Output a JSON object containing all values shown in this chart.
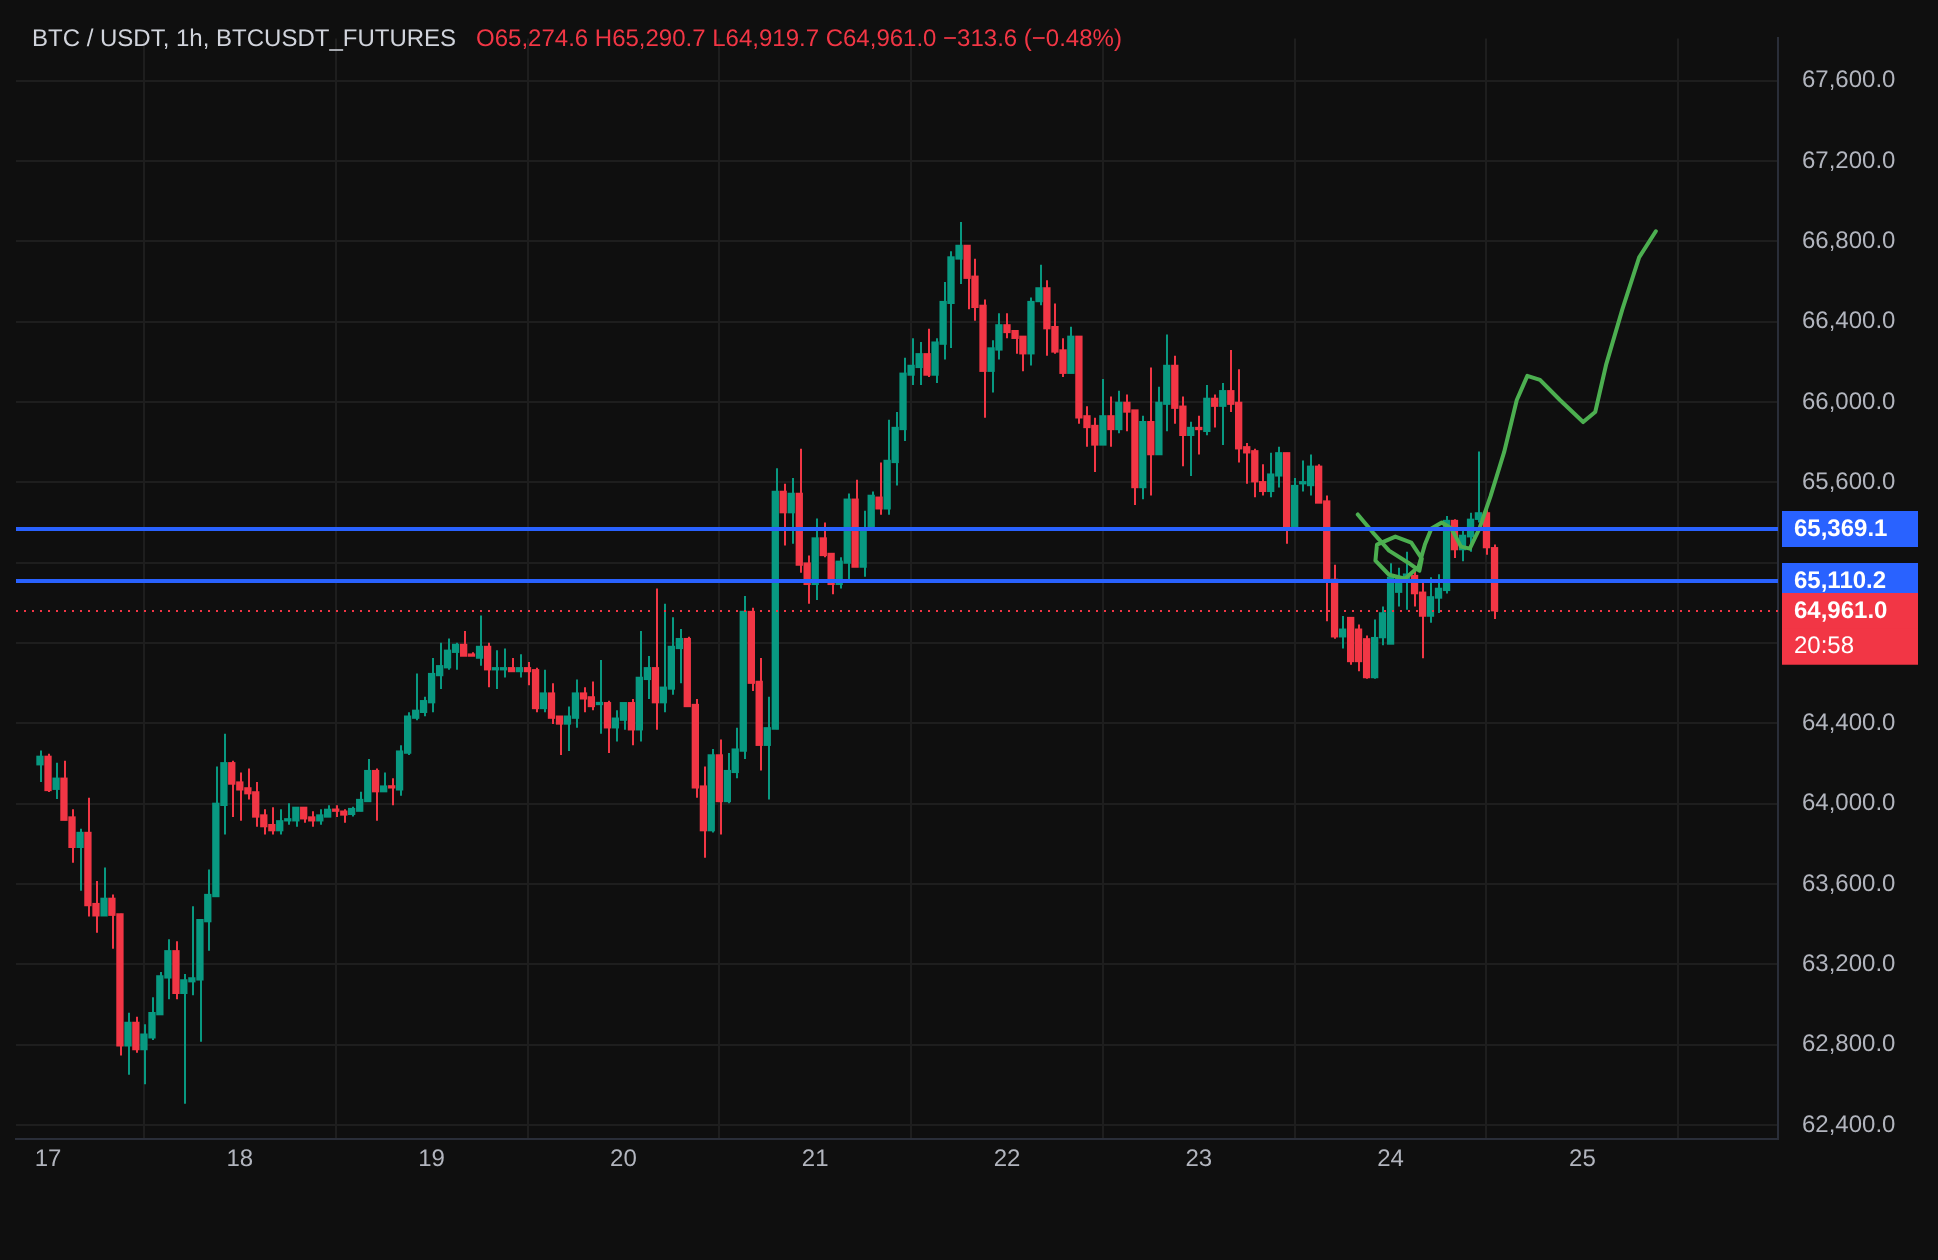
{
  "chart_data": {
    "type": "candlestick",
    "title": "BTC / USDT, 1h, BTCUSDT_FUTURES",
    "subtitle": "O65,274.6 H65,290.7 L64,919.7 C64,961.0 −313.6 (−0.48%)",
    "x": [
      16.958,
      17.0,
      17.042,
      17.083,
      17.125,
      17.167,
      17.208,
      17.25,
      17.292,
      17.333,
      17.375,
      17.417,
      17.458,
      17.5,
      17.542,
      17.583,
      17.625,
      17.667,
      17.708,
      17.75,
      17.792,
      17.833,
      17.875,
      17.917,
      17.958,
      18.0,
      18.042,
      18.083,
      18.125,
      18.167,
      18.208,
      18.25,
      18.292,
      18.333,
      18.375,
      18.417,
      18.458,
      18.5,
      18.542,
      18.583,
      18.625,
      18.667,
      18.708,
      18.75,
      18.792,
      18.833,
      18.875,
      18.917,
      18.958,
      19.0,
      19.042,
      19.083,
      19.125,
      19.167,
      19.208,
      19.25,
      19.292,
      19.333,
      19.375,
      19.417,
      19.458,
      19.5,
      19.542,
      19.583,
      19.625,
      19.667,
      19.708,
      19.75,
      19.792,
      19.833,
      19.875,
      19.917,
      19.958,
      20.0,
      20.042,
      20.083,
      20.125,
      20.167,
      20.208,
      20.25,
      20.292,
      20.333,
      20.375,
      20.417,
      20.458,
      20.5,
      20.542,
      20.583,
      20.625,
      20.667,
      20.708,
      20.75,
      20.792,
      20.833,
      20.875,
      20.917,
      20.958,
      21.0,
      21.042,
      21.083,
      21.125,
      21.167,
      21.208,
      21.25,
      21.292,
      21.333,
      21.375,
      21.417,
      21.458,
      21.5,
      21.542,
      21.583,
      21.625,
      21.667,
      21.708,
      21.75,
      21.792,
      21.833,
      21.875,
      21.917,
      21.958,
      22.0,
      22.042,
      22.083,
      22.125,
      22.167,
      22.208,
      22.25,
      22.292,
      22.333,
      22.375,
      22.417,
      22.458,
      22.5,
      22.542,
      22.583,
      22.625,
      22.667,
      22.708,
      22.75,
      22.792,
      22.833,
      22.875,
      22.917,
      22.958,
      23.0,
      23.042,
      23.083,
      23.125,
      23.167,
      23.208,
      23.25,
      23.292,
      23.333,
      23.375,
      23.417,
      23.458,
      23.5,
      23.542,
      23.583,
      23.625,
      23.667,
      23.708,
      23.75,
      23.792,
      23.833,
      23.875,
      23.917,
      23.958,
      24.0,
      24.042,
      24.083,
      24.125,
      24.167,
      24.208,
      24.25,
      24.292,
      24.333,
      24.375,
      24.417,
      24.458,
      24.5,
      24.542
    ],
    "ohlc": [
      [
        64194,
        64265,
        64108,
        64236
      ],
      [
        64236,
        64249,
        64059,
        64066
      ],
      [
        64072,
        64204,
        64024,
        64127
      ],
      [
        64127,
        64214,
        63918,
        63918
      ],
      [
        63934,
        63972,
        63706,
        63783
      ],
      [
        63783,
        63876,
        63567,
        63857
      ],
      [
        63857,
        64030,
        63439,
        63493
      ],
      [
        63503,
        63615,
        63358,
        63442
      ],
      [
        63442,
        63683,
        63442,
        63529
      ],
      [
        63529,
        63548,
        63278,
        63445
      ],
      [
        63452,
        63452,
        62747,
        62795
      ],
      [
        62795,
        62960,
        62651,
        62911
      ],
      [
        62911,
        62940,
        62760,
        62776
      ],
      [
        62776,
        62902,
        62603,
        62853
      ],
      [
        62834,
        63037,
        62824,
        62960
      ],
      [
        62950,
        63162,
        62950,
        63143
      ],
      [
        63133,
        63326,
        63027,
        63268
      ],
      [
        63268,
        63316,
        63027,
        63056
      ],
      [
        63056,
        63152,
        62506,
        63123
      ],
      [
        63114,
        63490,
        63046,
        63133
      ],
      [
        63123,
        63423,
        62815,
        63423
      ],
      [
        63413,
        63673,
        63268,
        63548
      ],
      [
        63538,
        64185,
        63538,
        64002
      ],
      [
        63992,
        64349,
        63847,
        64204
      ],
      [
        64204,
        64214,
        63934,
        64098
      ],
      [
        64108,
        64156,
        63915,
        64069
      ],
      [
        64079,
        64175,
        64021,
        64050
      ],
      [
        64059,
        64108,
        63886,
        63934
      ],
      [
        63944,
        63972,
        63847,
        63886
      ],
      [
        63896,
        63982,
        63847,
        63866
      ],
      [
        63866,
        63972,
        63847,
        63915
      ],
      [
        63915,
        64002,
        63896,
        63925
      ],
      [
        63915,
        63982,
        63886,
        63982
      ],
      [
        63982,
        63982,
        63905,
        63925
      ],
      [
        63934,
        63963,
        63886,
        63915
      ],
      [
        63915,
        63972,
        63896,
        63944
      ],
      [
        63934,
        63992,
        63934,
        63972
      ],
      [
        63972,
        63992,
        63934,
        63963
      ],
      [
        63963,
        63972,
        63905,
        63944
      ],
      [
        63947,
        63985,
        63937,
        63976
      ],
      [
        63963,
        64060,
        63963,
        64021
      ],
      [
        64011,
        64223,
        64011,
        64165
      ],
      [
        64165,
        64175,
        63915,
        64060
      ],
      [
        64060,
        64156,
        64060,
        64088
      ],
      [
        64088,
        64127,
        63992,
        64079
      ],
      [
        64069,
        64291,
        64040,
        64262
      ],
      [
        64252,
        64455,
        64243,
        64436
      ],
      [
        64426,
        64648,
        64416,
        64465
      ],
      [
        64455,
        64532,
        64436,
        64513
      ],
      [
        64503,
        64725,
        64455,
        64648
      ],
      [
        64638,
        64802,
        64571,
        64687
      ],
      [
        64677,
        64822,
        64667,
        64764
      ],
      [
        64754,
        64802,
        64667,
        64793
      ],
      [
        64793,
        64860,
        64735,
        64735
      ],
      [
        64744,
        64754,
        64735,
        64735
      ],
      [
        64725,
        64937,
        64687,
        64783
      ],
      [
        64783,
        64802,
        64580,
        64667
      ],
      [
        64667,
        64764,
        64571,
        64677
      ],
      [
        64667,
        64773,
        64629,
        64677
      ],
      [
        64677,
        64725,
        64658,
        64658
      ],
      [
        64658,
        64744,
        64629,
        64677
      ],
      [
        64677,
        64706,
        64590,
        64658
      ],
      [
        64667,
        64677,
        64455,
        64474
      ],
      [
        64474,
        64667,
        64455,
        64551
      ],
      [
        64551,
        64600,
        64397,
        64426
      ],
      [
        64436,
        64436,
        64243,
        64397
      ],
      [
        64397,
        64484,
        64262,
        64436
      ],
      [
        64426,
        64619,
        64378,
        64551
      ],
      [
        64551,
        64580,
        64455,
        64522
      ],
      [
        64532,
        64609,
        64465,
        64484
      ],
      [
        64494,
        64715,
        64349,
        64503
      ],
      [
        64503,
        64513,
        64252,
        64378
      ],
      [
        64378,
        64465,
        64310,
        64426
      ],
      [
        64416,
        64503,
        64368,
        64503
      ],
      [
        64503,
        64522,
        64291,
        64368
      ],
      [
        64368,
        64860,
        64310,
        64629
      ],
      [
        64619,
        64735,
        64522,
        64677
      ],
      [
        64677,
        65072,
        64368,
        64503
      ],
      [
        64503,
        64995,
        64455,
        64580
      ],
      [
        64571,
        64928,
        64542,
        64783
      ],
      [
        64773,
        64870,
        64600,
        64822
      ],
      [
        64822,
        64831,
        64484,
        64484
      ],
      [
        64494,
        64522,
        64030,
        64079
      ],
      [
        64088,
        64185,
        63731,
        63866
      ],
      [
        63866,
        64272,
        63857,
        64243
      ],
      [
        64243,
        64320,
        63847,
        64011
      ],
      [
        64011,
        64252,
        64002,
        64165
      ],
      [
        64156,
        64378,
        64127,
        64272
      ],
      [
        64262,
        65034,
        64223,
        64957
      ],
      [
        64957,
        64976,
        64561,
        64600
      ],
      [
        64609,
        64725,
        64165,
        64291
      ],
      [
        64291,
        64532,
        64021,
        64378
      ],
      [
        64371,
        65670,
        64371,
        65555
      ],
      [
        65555,
        65593,
        65285,
        65449
      ],
      [
        65449,
        65622,
        65294,
        65545
      ],
      [
        65545,
        65767,
        65150,
        65188
      ],
      [
        65198,
        65236,
        64995,
        65092
      ],
      [
        65092,
        65420,
        65014,
        65323
      ],
      [
        65323,
        65400,
        65227,
        65236
      ],
      [
        65246,
        65246,
        65043,
        65092
      ],
      [
        65092,
        65227,
        65072,
        65207
      ],
      [
        65198,
        65545,
        65101,
        65516
      ],
      [
        65516,
        65613,
        65178,
        65178
      ],
      [
        65178,
        65458,
        65130,
        65371
      ],
      [
        65362,
        65555,
        65362,
        65535
      ],
      [
        65526,
        65699,
        65439,
        65468
      ],
      [
        65468,
        65912,
        65439,
        65709
      ],
      [
        65699,
        65950,
        65584,
        65873
      ],
      [
        65863,
        66220,
        65806,
        66143
      ],
      [
        66134,
        66317,
        66085,
        66182
      ],
      [
        66172,
        66298,
        66085,
        66240
      ],
      [
        66240,
        66365,
        66124,
        66134
      ],
      [
        66134,
        66317,
        66095,
        66298
      ],
      [
        66288,
        66597,
        66211,
        66500
      ],
      [
        66491,
        66751,
        66269,
        66722
      ],
      [
        66712,
        66896,
        66587,
        66780
      ],
      [
        66780,
        66780,
        66462,
        66616
      ],
      [
        66626,
        66713,
        66404,
        66471
      ],
      [
        66481,
        66510,
        65921,
        66153
      ],
      [
        66153,
        66307,
        66047,
        66269
      ],
      [
        66259,
        66442,
        66211,
        66384
      ],
      [
        66384,
        66442,
        66317,
        66346
      ],
      [
        66355,
        66355,
        66240,
        66317
      ],
      [
        66327,
        66327,
        66153,
        66240
      ],
      [
        66240,
        66520,
        66182,
        66500
      ],
      [
        66500,
        66683,
        66481,
        66568
      ],
      [
        66568,
        66606,
        66230,
        66365
      ],
      [
        66375,
        66490,
        66240,
        66249
      ],
      [
        66259,
        66317,
        66124,
        66143
      ],
      [
        66143,
        66375,
        66143,
        66327
      ],
      [
        66327,
        66327,
        65892,
        65921
      ],
      [
        65931,
        65979,
        65777,
        65873
      ],
      [
        65883,
        65921,
        65651,
        65786
      ],
      [
        65786,
        66114,
        65786,
        65931
      ],
      [
        65931,
        66027,
        65777,
        65863
      ],
      [
        65863,
        66056,
        65844,
        65998
      ],
      [
        65998,
        66037,
        65854,
        65950
      ],
      [
        65960,
        65960,
        65487,
        65574
      ],
      [
        65574,
        65931,
        65516,
        65902
      ],
      [
        65902,
        66172,
        65535,
        65738
      ],
      [
        65738,
        66076,
        65738,
        65998
      ],
      [
        65989,
        66336,
        65854,
        66182
      ],
      [
        66182,
        66230,
        65892,
        65969
      ],
      [
        65979,
        66027,
        65680,
        65834
      ],
      [
        65834,
        65902,
        65632,
        65873
      ],
      [
        65873,
        65931,
        65738,
        65863
      ],
      [
        65854,
        66085,
        65834,
        66018
      ],
      [
        66018,
        66037,
        65873,
        65979
      ],
      [
        65979,
        66095,
        65786,
        66056
      ],
      [
        66056,
        66259,
        65950,
        65989
      ],
      [
        65998,
        66163,
        65699,
        65767
      ],
      [
        65777,
        65796,
        65593,
        65747
      ],
      [
        65757,
        65767,
        65526,
        65603
      ],
      [
        65603,
        65690,
        65535,
        65555
      ],
      [
        65555,
        65747,
        65526,
        65641
      ],
      [
        65632,
        65777,
        65574,
        65747
      ],
      [
        65747,
        65747,
        65294,
        65381
      ],
      [
        65381,
        65622,
        65362,
        65584
      ],
      [
        65593,
        65709,
        65555,
        65603
      ],
      [
        65584,
        65738,
        65535,
        65680
      ],
      [
        65680,
        65690,
        65497,
        65497
      ],
      [
        65507,
        65535,
        64908,
        65111
      ],
      [
        65117,
        65190,
        64821,
        64831
      ],
      [
        64831,
        64934,
        64773,
        64869
      ],
      [
        64927,
        64927,
        64692,
        64708
      ],
      [
        64869,
        64892,
        64660,
        64708
      ],
      [
        64821,
        64837,
        64622,
        64628
      ],
      [
        64628,
        64917,
        64622,
        64827
      ],
      [
        64827,
        64982,
        64789,
        64950
      ],
      [
        64795,
        65197,
        64795,
        65127
      ],
      [
        65053,
        65175,
        64982,
        65127
      ],
      [
        65111,
        65255,
        64966,
        65143
      ],
      [
        65136,
        65159,
        64982,
        65046
      ],
      [
        65053,
        65117,
        64724,
        64934
      ],
      [
        64934,
        65127,
        64901,
        65030
      ],
      [
        65024,
        65143,
        64950,
        65072
      ],
      [
        65062,
        65432,
        65046,
        65410
      ],
      [
        65410,
        65416,
        65223,
        65265
      ],
      [
        65265,
        65368,
        65207,
        65336
      ],
      [
        65329,
        65448,
        65255,
        65416
      ],
      [
        65416,
        65754,
        65400,
        65448
      ],
      [
        65448,
        65464,
        65239,
        65275
      ],
      [
        65274.6,
        65290.7,
        64919.7,
        64961.0
      ]
    ],
    "series": [
      {
        "type": "line",
        "color": "#4caf50",
        "x": [
          23.829,
          23.908,
          23.992,
          24.092,
          24.15,
          24.163,
          24.108,
          24.025,
          23.929,
          23.921,
          23.992,
          24.075,
          24.146,
          24.179,
          24.213,
          24.267,
          24.317,
          24.367,
          24.413,
          24.463,
          24.521,
          24.592,
          24.658,
          24.713,
          24.779,
          24.883,
          25.004,
          25.067,
          25.125,
          25.208,
          25.296,
          25.383
        ],
        "values": [
          65440,
          65350,
          65260,
          65200,
          65160,
          65220,
          65300,
          65330,
          65290,
          65210,
          65140,
          65120,
          65180,
          65290,
          65370,
          65400,
          65370,
          65280,
          65270,
          65370,
          65530,
          65750,
          66010,
          66130,
          66110,
          66010,
          65900,
          65950,
          66190,
          66460,
          66720,
          66850
        ]
      }
    ],
    "xlim": [
      16.833,
      26.02
    ],
    "xticks": [
      17,
      18,
      19,
      20,
      21,
      22,
      23,
      24,
      25,
      {
        "value": 26,
        "label": null
      }
    ],
    "ylim": [
      62330,
      67810
    ],
    "yticks": [
      {
        "value": 62400,
        "label": "62,400.0"
      },
      {
        "value": 62800,
        "label": "62,800.0"
      },
      {
        "value": 63200,
        "label": "63,200.0"
      },
      {
        "value": 63600,
        "label": "63,600.0"
      },
      {
        "value": 64000,
        "label": "64,000.0"
      },
      {
        "value": 64400,
        "label": "64,400.0"
      },
      {
        "value": 64800,
        "label": null
      },
      {
        "value": 65200,
        "label": null
      },
      {
        "value": 65600,
        "label": "65,600.0"
      },
      {
        "value": 66000,
        "label": "66,000.0"
      },
      {
        "value": 66400,
        "label": "66,400.0"
      },
      {
        "value": 66800,
        "label": "66,800.0"
      },
      {
        "value": 67200,
        "label": "67,200.0"
      },
      {
        "value": 67600,
        "label": "67,600.0"
      }
    ],
    "ref_lines": [
      {
        "axis": "y",
        "value": 65369.1,
        "label": "65,369.1",
        "color": "#2962ff",
        "line_style": "solid"
      },
      {
        "axis": "y",
        "value": 65110.2,
        "label": "65,110.2",
        "color": "#2962ff",
        "line_style": "solid"
      },
      {
        "axis": "y",
        "value": 64961.0,
        "label": "64,961.0",
        "color": "#f23645",
        "line_style": "dotted"
      }
    ],
    "annotations": [
      "20:58"
    ],
    "grid": true,
    "legend": false
  }
}
